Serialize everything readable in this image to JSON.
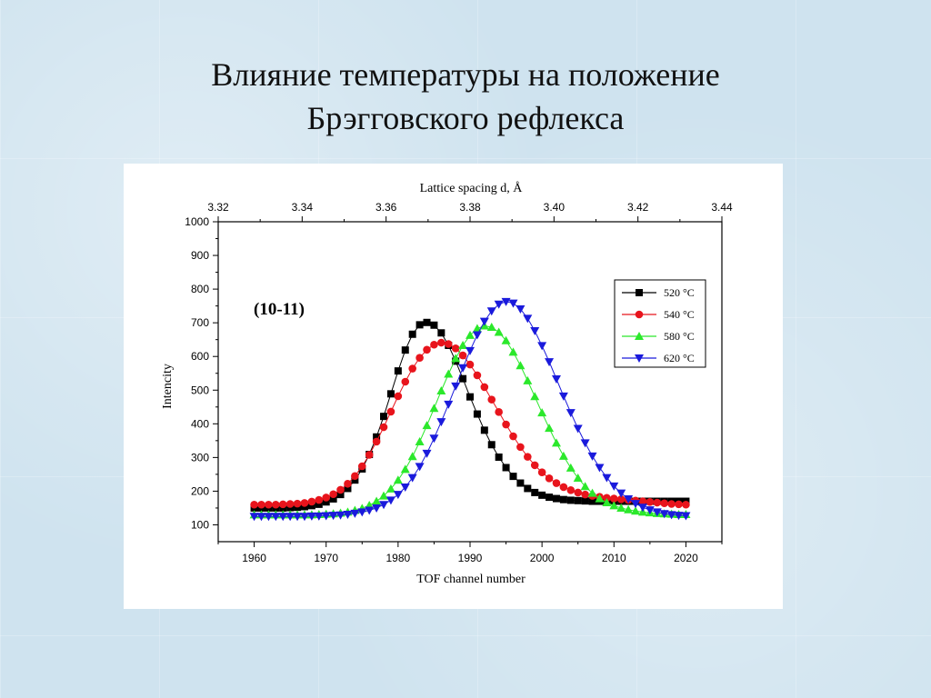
{
  "slide": {
    "title_line1": "Влияние температуры на положение",
    "title_line2": "Брэгговского рефлекса"
  },
  "chart_data": {
    "type": "scatter",
    "annotation": "(10-11)",
    "xlabel": "TOF channel number",
    "ylabel": "Intencity",
    "x2label": "Lattice spacing d, Å",
    "xlim": [
      1955,
      2025
    ],
    "ylim": [
      50,
      1000
    ],
    "x_ticks": [
      1960,
      1970,
      1980,
      1990,
      2000,
      2010,
      2020
    ],
    "y_ticks": [
      100,
      200,
      300,
      400,
      500,
      600,
      700,
      800,
      900,
      1000
    ],
    "x2lim": [
      3.32,
      3.44
    ],
    "x2_ticks": [
      "3.32",
      "3.34",
      "3.36",
      "3.38",
      "3.40",
      "3.42",
      "3.44"
    ],
    "legend_position": "top-right",
    "x": [
      1960,
      1961,
      1962,
      1963,
      1964,
      1965,
      1966,
      1967,
      1968,
      1969,
      1970,
      1971,
      1972,
      1973,
      1974,
      1975,
      1976,
      1977,
      1978,
      1979,
      1980,
      1981,
      1982,
      1983,
      1984,
      1985,
      1986,
      1987,
      1988,
      1989,
      1990,
      1991,
      1992,
      1993,
      1994,
      1995,
      1996,
      1997,
      1998,
      1999,
      2000,
      2001,
      2002,
      2003,
      2004,
      2005,
      2006,
      2007,
      2008,
      2009,
      2010,
      2011,
      2012,
      2013,
      2014,
      2015,
      2016,
      2017,
      2018,
      2019,
      2020
    ],
    "series": [
      {
        "name": "520 °C",
        "marker": "square",
        "color": "#000000",
        "values": [
          150,
          150,
          150,
          150,
          150,
          151,
          152,
          154,
          157,
          161,
          168,
          177,
          190,
          208,
          233,
          266,
          309,
          361,
          422,
          489,
          557,
          619,
          666,
          694,
          701,
          693,
          670,
          633,
          586,
          534,
          480,
          429,
          381,
          338,
          301,
          270,
          244,
          224,
          208,
          196,
          188,
          182,
          178,
          175,
          173,
          172,
          171,
          170,
          170,
          170,
          170,
          170,
          170,
          170,
          170,
          170,
          170,
          170,
          170,
          170,
          170
        ]
      },
      {
        "name": "540 °C",
        "marker": "circle",
        "color": "#e8141c",
        "values": [
          160,
          160,
          160,
          160,
          161,
          162,
          163,
          165,
          169,
          174,
          181,
          191,
          204,
          222,
          245,
          274,
          308,
          347,
          390,
          436,
          482,
          525,
          564,
          596,
          620,
          635,
          641,
          637,
          624,
          603,
          576,
          544,
          509,
          472,
          435,
          398,
          363,
          331,
          302,
          277,
          256,
          238,
          224,
          212,
          203,
          196,
          190,
          186,
          183,
          180,
          178,
          176,
          174,
          172,
          170,
          168,
          166,
          164,
          162,
          161,
          160
        ]
      },
      {
        "name": "580 °C",
        "marker": "triangle-up",
        "color": "#2be82b",
        "values": [
          130,
          130,
          130,
          130,
          130,
          130,
          130,
          130,
          130,
          131,
          132,
          133,
          135,
          138,
          143,
          149,
          158,
          170,
          186,
          207,
          233,
          265,
          303,
          347,
          395,
          446,
          498,
          548,
          594,
          633,
          663,
          683,
          691,
          687,
          672,
          647,
          613,
          573,
          528,
          481,
          433,
          387,
          343,
          304,
          269,
          239,
          214,
          194,
          178,
          166,
          157,
          150,
          145,
          141,
          138,
          136,
          134,
          133,
          132,
          131,
          131
        ]
      },
      {
        "name": "620 °C",
        "marker": "triangle-down",
        "color": "#1a1adc",
        "values": [
          125,
          125,
          125,
          125,
          125,
          125,
          125,
          125,
          126,
          126,
          127,
          128,
          129,
          131,
          134,
          138,
          143,
          150,
          160,
          173,
          190,
          212,
          240,
          273,
          312,
          357,
          406,
          458,
          512,
          566,
          617,
          664,
          704,
          735,
          755,
          763,
          758,
          741,
          713,
          676,
          632,
          584,
          533,
          482,
          433,
          386,
          343,
          304,
          270,
          240,
          215,
          194,
          177,
          163,
          152,
          144,
          138,
          133,
          130,
          128,
          127
        ]
      }
    ]
  }
}
